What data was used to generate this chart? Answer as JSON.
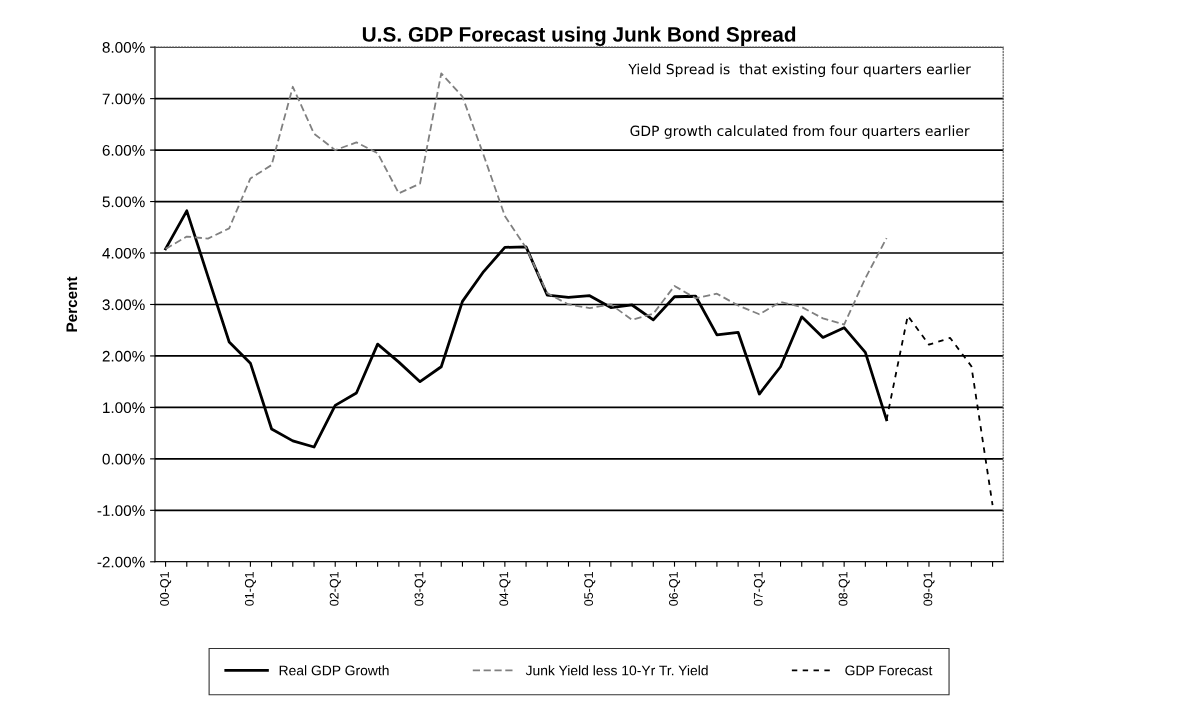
{
  "chart_data": {
    "type": "line",
    "title": "U.S. GDP Forecast using Junk Bond Spread",
    "ylabel": "Percent",
    "annotations": [
      "Yield Spread is  that existing four quarters earlier",
      "GDP growth calculated from four quarters earlier"
    ],
    "categories": [
      "00-Q1",
      null,
      null,
      null,
      "01-Q1",
      null,
      null,
      null,
      "02-Q1",
      null,
      null,
      null,
      "03-Q1",
      null,
      null,
      null,
      "04-Q1",
      null,
      null,
      null,
      "05-Q1",
      null,
      null,
      null,
      "06-Q1",
      null,
      null,
      null,
      "07-Q1",
      null,
      null,
      null,
      "08-Q1",
      null,
      null,
      null,
      "09-Q1",
      null,
      null,
      null
    ],
    "series": [
      {
        "name": "Real GDP Growth",
        "color": "#000000",
        "line_style": "solid",
        "values": [
          4.08,
          4.82,
          3.54,
          2.27,
          1.86,
          0.58,
          0.35,
          0.23,
          1.04,
          1.28,
          2.23,
          1.88,
          1.5,
          1.79,
          3.06,
          3.64,
          4.11,
          4.12,
          3.18,
          3.14,
          3.17,
          2.94,
          2.99,
          2.7,
          3.15,
          3.16,
          2.41,
          2.46,
          1.26,
          1.79,
          2.76,
          2.36,
          2.55,
          2.07,
          0.76,
          null,
          null,
          null,
          null,
          null
        ]
      },
      {
        "name": "Junk Yield less 10-Yr Tr. Yield",
        "color": "#808080",
        "line_style": "dashed",
        "values": [
          4.08,
          4.32,
          4.28,
          4.48,
          5.45,
          5.71,
          7.23,
          6.32,
          6.0,
          6.15,
          5.94,
          5.16,
          5.35,
          7.49,
          7.04,
          5.9,
          4.72,
          4.1,
          3.22,
          3.0,
          2.93,
          3.0,
          2.7,
          2.82,
          3.36,
          3.12,
          3.21,
          2.98,
          2.81,
          3.05,
          2.95,
          2.73,
          2.61,
          3.51,
          4.29,
          null,
          null,
          null,
          null,
          null
        ]
      },
      {
        "name": "GDP Forecast",
        "color": "#000000",
        "line_style": "dotted",
        "values": [
          null,
          null,
          null,
          null,
          null,
          null,
          null,
          null,
          null,
          null,
          null,
          null,
          null,
          null,
          null,
          null,
          null,
          null,
          null,
          null,
          null,
          null,
          null,
          null,
          null,
          null,
          null,
          null,
          null,
          null,
          null,
          null,
          null,
          null,
          0.76,
          2.78,
          2.22,
          2.35,
          1.8,
          -0.9
        ]
      }
    ],
    "ylim": [
      -2,
      8
    ],
    "yticks": [
      {
        "value": -2,
        "label": "-2.00%"
      },
      {
        "value": -1,
        "label": "-1.00%"
      },
      {
        "value": 0,
        "label": "0.00%"
      },
      {
        "value": 1,
        "label": "1.00%"
      },
      {
        "value": 2,
        "label": "2.00%"
      },
      {
        "value": 3,
        "label": "3.00%"
      },
      {
        "value": 4,
        "label": "4.00%"
      },
      {
        "value": 5,
        "label": "5.00%"
      },
      {
        "value": 6,
        "label": "6.00%"
      },
      {
        "value": 7,
        "label": "7.00%"
      },
      {
        "value": 8,
        "label": "8.00%"
      }
    ],
    "grid": "y",
    "legend": "bottom"
  }
}
